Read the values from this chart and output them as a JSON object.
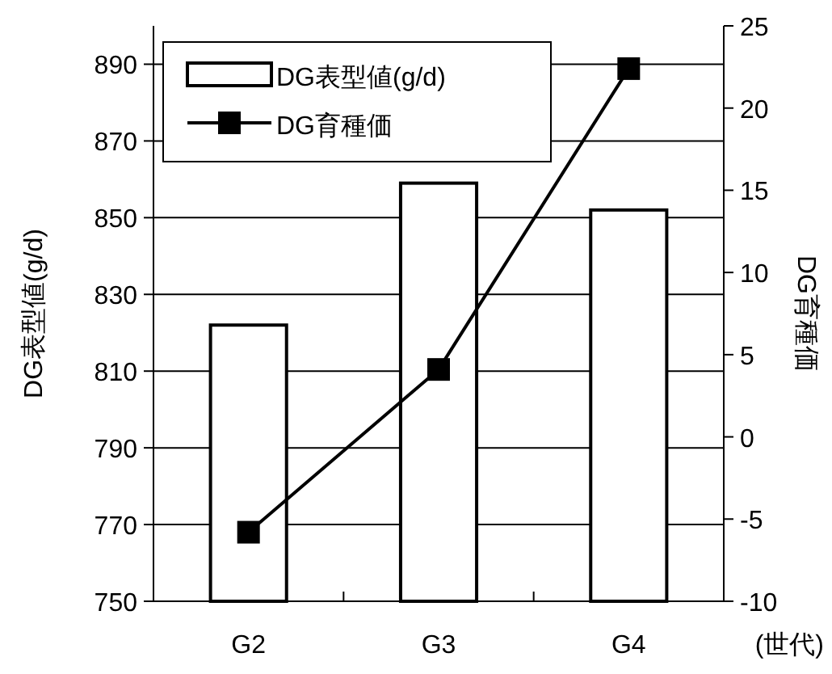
{
  "chart_data": {
    "type": "bar",
    "categories": [
      "G2",
      "G3",
      "G4"
    ],
    "series": [
      {
        "name": "DG表型値(g/d)",
        "color": "#ffffff",
        "values": [
          822,
          859,
          852
        ]
      },
      {
        "name": "DG育種価",
        "type": "line",
        "axis": "y2",
        "color": "#000000",
        "values": [
          -5.8,
          4.1,
          22.4
        ]
      }
    ],
    "ylabel": "DG表型値(g/d)",
    "y2label": "DG育種価",
    "xlabel": "(世代)",
    "ylim": [
      750,
      900
    ],
    "yticks": [
      750,
      770,
      790,
      810,
      830,
      850,
      870,
      890
    ],
    "y2lim": [
      -10,
      25
    ],
    "y2ticks": [
      -10,
      -5,
      0,
      5,
      10,
      15,
      20,
      25
    ],
    "grid": "y",
    "legend": "top left",
    "marker": "square",
    "line_style": "solid"
  }
}
